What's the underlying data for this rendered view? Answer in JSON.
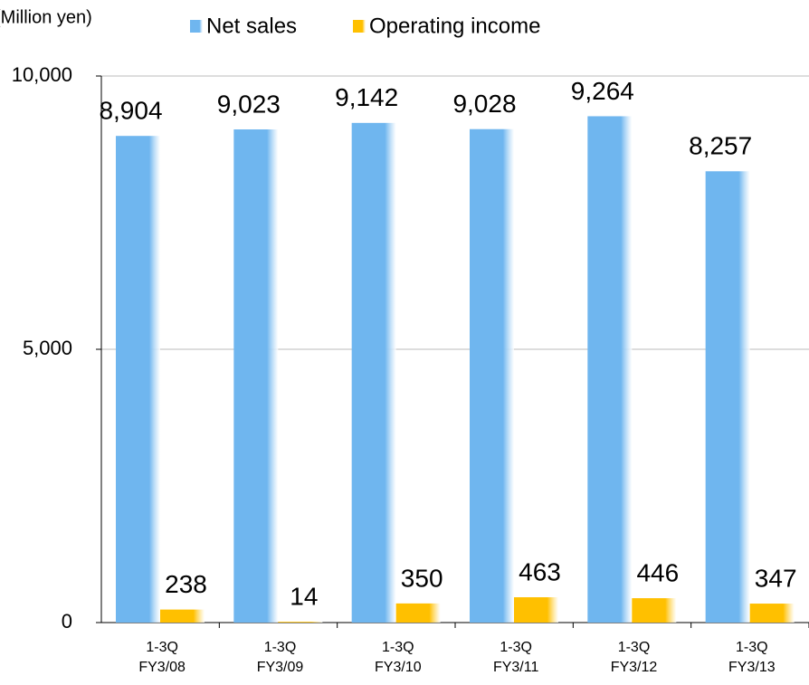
{
  "chart_data": {
    "type": "bar",
    "y_label": "(Million yen)",
    "categories": [
      [
        "1-3Q",
        "FY3/08"
      ],
      [
        "1-3Q",
        "FY3/09"
      ],
      [
        "1-3Q",
        "FY3/10"
      ],
      [
        "1-3Q",
        "FY3/11"
      ],
      [
        "1-3Q",
        "FY3/12"
      ],
      [
        "1-3Q",
        "FY3/13"
      ]
    ],
    "series": [
      {
        "name": "Net sales",
        "color": "#6fb6ef",
        "values": [
          8904,
          9023,
          9142,
          9028,
          9264,
          8257
        ],
        "value_labels": [
          "8,904",
          "9,023",
          "9,142",
          "9,028",
          "9,264",
          "8,257"
        ]
      },
      {
        "name": "Operating income",
        "color": "#ffc000",
        "values": [
          238,
          14,
          350,
          463,
          446,
          347
        ]
      }
    ],
    "ylim": [
      0,
      10000
    ],
    "yticks": [
      0,
      {
        "value": 5000,
        "label": "5,000"
      },
      {
        "value": 10000,
        "label": "10,000"
      }
    ],
    "grid": true,
    "legend": "top"
  }
}
